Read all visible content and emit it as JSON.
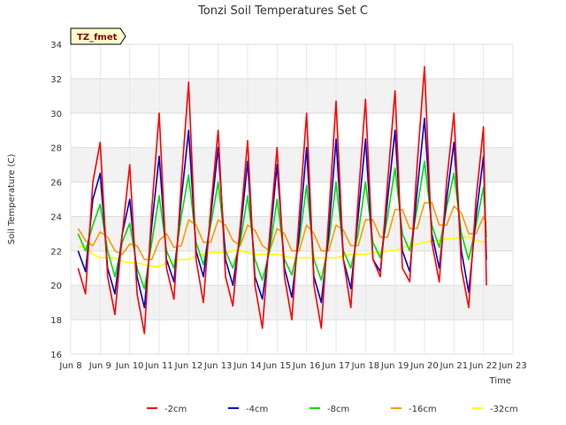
{
  "chart_data": {
    "type": "line",
    "title": "Tonzi Soil Temperatures Set C",
    "xlabel": "Time",
    "ylabel": "Soil Temperature (C)",
    "badge": "TZ_fmet",
    "xlim": [
      8,
      23
    ],
    "ylim": [
      16,
      34
    ],
    "x_ticks": [
      "Jun 8",
      "Jun 9",
      "Jun 10",
      "Jun 11",
      "Jun 12",
      "Jun 13",
      "Jun 14",
      "Jun 15",
      "Jun 16",
      "Jun 17",
      "Jun 18",
      "Jun 19",
      "Jun 20",
      "Jun 21",
      "Jun 22",
      "Jun 23"
    ],
    "y_ticks": [
      "16",
      "18",
      "20",
      "22",
      "24",
      "26",
      "28",
      "30",
      "32",
      "34"
    ],
    "grid": true,
    "legend_position": "bottom",
    "x": [
      8.25,
      8.5,
      8.75,
      9.0,
      9.25,
      9.5,
      9.75,
      10.0,
      10.25,
      10.5,
      10.75,
      11.0,
      11.25,
      11.5,
      11.75,
      12.0,
      12.25,
      12.5,
      12.75,
      13.0,
      13.25,
      13.5,
      13.75,
      14.0,
      14.25,
      14.5,
      14.75,
      15.0,
      15.25,
      15.5,
      15.75,
      16.0,
      16.25,
      16.5,
      16.75,
      17.0,
      17.25,
      17.5,
      17.75,
      18.0,
      18.25,
      18.5,
      18.75,
      19.0,
      19.25,
      19.5,
      19.75,
      20.0,
      20.25,
      20.5,
      20.75,
      21.0,
      21.25,
      21.5,
      21.75,
      22.0,
      22.1
    ],
    "series": [
      {
        "name": "-2cm",
        "color": "#ff0000",
        "values": [
          21.0,
          19.5,
          26.0,
          28.3,
          20.5,
          18.3,
          23.0,
          27.0,
          19.5,
          17.2,
          24.5,
          30.0,
          21.0,
          19.2,
          26.0,
          31.8,
          21.5,
          19.0,
          24.5,
          29.0,
          20.5,
          18.8,
          23.5,
          28.4,
          20.0,
          17.5,
          23.0,
          28.0,
          20.5,
          18.0,
          24.0,
          30.0,
          20.0,
          17.5,
          24.0,
          30.7,
          21.5,
          18.7,
          25.0,
          30.8,
          21.5,
          20.5,
          26.0,
          31.3,
          21.0,
          20.2,
          27.0,
          32.7,
          22.5,
          20.2,
          26.0,
          30.0,
          21.0,
          18.7,
          25.0,
          29.2,
          20.0
        ]
      },
      {
        "name": "-4cm",
        "color": "#0000cc",
        "values": [
          22.0,
          20.8,
          25.0,
          26.5,
          21.0,
          19.5,
          23.0,
          25.0,
          20.5,
          18.7,
          23.5,
          27.5,
          21.5,
          20.2,
          25.0,
          29.0,
          22.0,
          20.5,
          24.0,
          28.0,
          21.5,
          20.0,
          23.0,
          27.2,
          20.5,
          19.2,
          22.5,
          27.0,
          21.0,
          19.3,
          23.0,
          28.0,
          20.5,
          19.0,
          23.0,
          28.5,
          21.5,
          19.8,
          24.0,
          28.5,
          21.5,
          20.8,
          25.0,
          29.0,
          22.0,
          20.8,
          25.5,
          29.7,
          23.0,
          21.0,
          25.0,
          28.3,
          22.0,
          19.6,
          24.0,
          27.5,
          21.5
        ]
      },
      {
        "name": "-8cm",
        "color": "#00dd00",
        "values": [
          23.0,
          22.0,
          23.5,
          24.7,
          22.0,
          20.5,
          22.5,
          23.6,
          21.0,
          19.8,
          22.5,
          25.2,
          22.0,
          21.0,
          24.0,
          26.4,
          22.5,
          21.2,
          23.5,
          26.0,
          22.0,
          21.0,
          22.5,
          25.2,
          21.5,
          20.3,
          22.0,
          25.0,
          21.5,
          20.6,
          22.5,
          25.8,
          21.5,
          20.3,
          22.5,
          26.0,
          22.0,
          21.0,
          23.0,
          26.0,
          22.5,
          21.6,
          24.0,
          26.8,
          23.0,
          22.0,
          24.5,
          27.2,
          23.5,
          22.2,
          24.5,
          26.5,
          23.0,
          21.5,
          23.5,
          25.7,
          22.8
        ]
      },
      {
        "name": "-16cm",
        "color": "#ff9900",
        "values": [
          23.3,
          22.6,
          22.3,
          23.1,
          22.8,
          22.0,
          21.8,
          22.4,
          22.3,
          21.5,
          21.5,
          22.6,
          23.0,
          22.2,
          22.3,
          23.8,
          23.5,
          22.5,
          22.5,
          23.8,
          23.5,
          22.6,
          22.3,
          23.5,
          23.2,
          22.3,
          22.0,
          23.3,
          23.0,
          22.0,
          22.0,
          23.5,
          23.0,
          22.0,
          22.0,
          23.5,
          23.2,
          22.3,
          22.3,
          23.8,
          23.8,
          22.8,
          22.8,
          24.4,
          24.4,
          23.3,
          23.3,
          24.8,
          24.8,
          23.5,
          23.5,
          24.6,
          24.2,
          23.0,
          23.0,
          24.0,
          23.6
        ]
      },
      {
        "name": "-32cm",
        "color": "#ffff00",
        "values": [
          22.2,
          22.3,
          21.8,
          21.6,
          21.6,
          21.6,
          21.4,
          21.3,
          21.3,
          21.2,
          21.1,
          21.1,
          21.3,
          21.4,
          21.5,
          21.5,
          21.7,
          21.8,
          21.9,
          21.9,
          21.9,
          22.0,
          22.0,
          21.9,
          21.8,
          21.8,
          21.8,
          21.8,
          21.7,
          21.6,
          21.6,
          21.6,
          21.6,
          21.6,
          21.6,
          21.6,
          21.7,
          21.8,
          21.8,
          21.8,
          21.9,
          21.9,
          22.0,
          22.0,
          22.2,
          22.3,
          22.4,
          22.5,
          22.6,
          22.6,
          22.7,
          22.7,
          22.8,
          22.8,
          22.6,
          22.5,
          22.6
        ]
      }
    ]
  }
}
